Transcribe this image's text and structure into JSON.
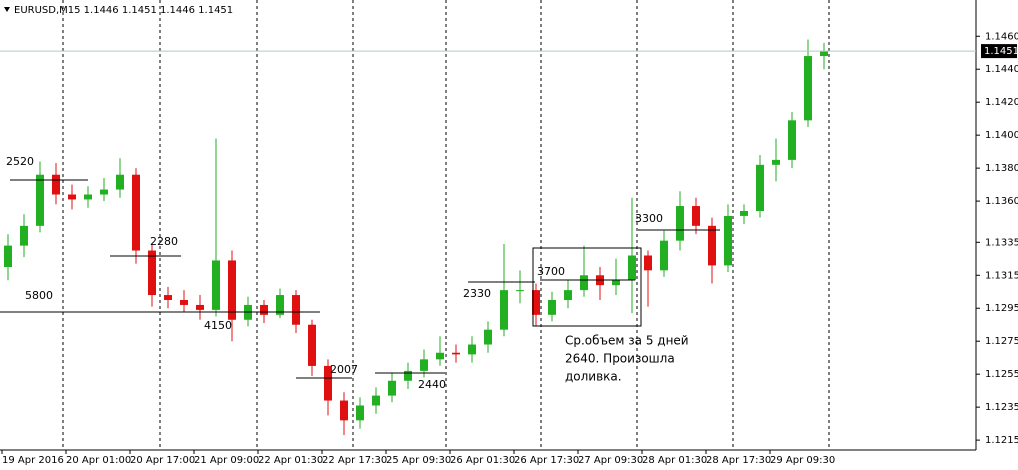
{
  "chart_data": {
    "type": "candlestick",
    "title": "EURUSD,M15  1.1446 1.1451 1.1446 1.1451",
    "up_color": "#22b022",
    "down_color": "#e01010",
    "open": [
      1.132,
      1.1333,
      1.1345,
      1.1376,
      1.1364,
      1.1361,
      1.1364,
      1.1367,
      1.1376,
      1.133,
      1.1303,
      1.13,
      1.1297,
      1.1294,
      1.1324,
      1.1288,
      1.1297,
      1.1291,
      1.1303,
      1.1285,
      1.126,
      1.1239,
      1.1227,
      1.1236,
      1.1242,
      1.1251,
      1.1257,
      1.1264,
      1.1268,
      1.1267,
      1.1273,
      1.1282,
      1.1306,
      1.1306,
      1.1291,
      1.13,
      1.1306,
      1.1315,
      1.1309,
      1.1312,
      1.1327,
      1.1318,
      1.1336,
      1.1357,
      1.1345,
      1.1321,
      1.1351,
      1.1354,
      1.1382,
      1.1385,
      1.1409,
      1.1448
    ],
    "high": [
      1.134,
      1.1352,
      1.1384,
      1.1383,
      1.137,
      1.1369,
      1.1374,
      1.1386,
      1.138,
      1.1334,
      1.1308,
      1.1306,
      1.1303,
      1.1398,
      1.133,
      1.1302,
      1.13,
      1.1307,
      1.1306,
      1.1288,
      1.1264,
      1.1244,
      1.1241,
      1.1247,
      1.1256,
      1.1262,
      1.127,
      1.1278,
      1.1273,
      1.1278,
      1.1287,
      1.1334,
      1.1318,
      1.131,
      1.1305,
      1.1312,
      1.1333,
      1.132,
      1.1325,
      1.1362,
      1.133,
      1.1342,
      1.1366,
      1.1362,
      1.135,
      1.1358,
      1.1358,
      1.1388,
      1.1398,
      1.1414,
      1.1458,
      1.1456
    ],
    "low": [
      1.1312,
      1.1326,
      1.1341,
      1.1358,
      1.1355,
      1.1356,
      1.136,
      1.1362,
      1.1322,
      1.1296,
      1.1295,
      1.1293,
      1.1288,
      1.129,
      1.1275,
      1.1284,
      1.1286,
      1.1289,
      1.128,
      1.1254,
      1.123,
      1.1218,
      1.1222,
      1.1231,
      1.1238,
      1.1246,
      1.1253,
      1.126,
      1.1262,
      1.1262,
      1.1268,
      1.1278,
      1.1298,
      1.1284,
      1.1287,
      1.1295,
      1.1302,
      1.13,
      1.1303,
      1.1292,
      1.1296,
      1.1314,
      1.133,
      1.134,
      1.131,
      1.1317,
      1.1346,
      1.135,
      1.1372,
      1.138,
      1.1405,
      1.144
    ],
    "close": [
      1.1333,
      1.1345,
      1.1376,
      1.1364,
      1.1361,
      1.1364,
      1.1367,
      1.1376,
      1.133,
      1.1303,
      1.13,
      1.1297,
      1.1294,
      1.1324,
      1.1288,
      1.1297,
      1.1291,
      1.1303,
      1.1285,
      1.126,
      1.1239,
      1.1227,
      1.1236,
      1.1242,
      1.1251,
      1.1257,
      1.1264,
      1.1268,
      1.1267,
      1.1273,
      1.1282,
      1.1306,
      1.1306,
      1.1291,
      1.13,
      1.1306,
      1.1315,
      1.1309,
      1.1312,
      1.1327,
      1.1318,
      1.1336,
      1.1357,
      1.1345,
      1.1321,
      1.1351,
      1.1354,
      1.1382,
      1.1385,
      1.1409,
      1.1448,
      1.1451
    ],
    "xticks": [
      {
        "value": 0,
        "label": "19 Apr 2016"
      },
      {
        "value": 4,
        "label": "20 Apr 01:00"
      },
      {
        "value": 8,
        "label": "20 Apr 17:00"
      },
      {
        "value": 12,
        "label": "21 Apr 09:00"
      },
      {
        "value": 16,
        "label": "22 Apr 01:30"
      },
      {
        "value": 20,
        "label": "22 Apr 17:30"
      },
      {
        "value": 24,
        "label": "25 Apr 09:30"
      },
      {
        "value": 28,
        "label": "26 Apr 01:30"
      },
      {
        "value": 32,
        "label": "26 Apr 17:30"
      },
      {
        "value": 36,
        "label": "27 Apr 09:30"
      },
      {
        "value": 40,
        "label": "28 Apr 01:30"
      },
      {
        "value": 44,
        "label": "28 Apr 17:30"
      },
      {
        "value": 48,
        "label": "29 Apr 09:30"
      }
    ],
    "ylim": [
      1.1209,
      1.1482
    ],
    "yticks": [
      {
        "value": 1.146,
        "label": "1.1460"
      },
      {
        "value": 1.144,
        "label": "1.1440"
      },
      {
        "value": 1.142,
        "label": "1.1420"
      },
      {
        "value": 1.14,
        "label": "1.1400"
      },
      {
        "value": 1.138,
        "label": "1.1380"
      },
      {
        "value": 1.136,
        "label": "1.1360"
      },
      {
        "value": 1.1335,
        "label": "1.1335"
      },
      {
        "value": 1.1315,
        "label": "1.1315"
      },
      {
        "value": 1.1295,
        "label": "1.1295"
      },
      {
        "value": 1.1275,
        "label": "1.1275"
      },
      {
        "value": 1.1255,
        "label": "1.1255"
      },
      {
        "value": 1.1235,
        "label": "1.1235"
      },
      {
        "value": 1.1215,
        "label": "1.1215"
      }
    ],
    "last_price": 1.1451,
    "annotations": [
      "2520",
      "2280",
      "5800",
      "4150",
      "2007",
      "2440",
      "2330",
      "3700",
      "3300"
    ],
    "note": [
      "Ср.объем за 5 дней",
      "2640. Произошла",
      "доливка."
    ]
  }
}
